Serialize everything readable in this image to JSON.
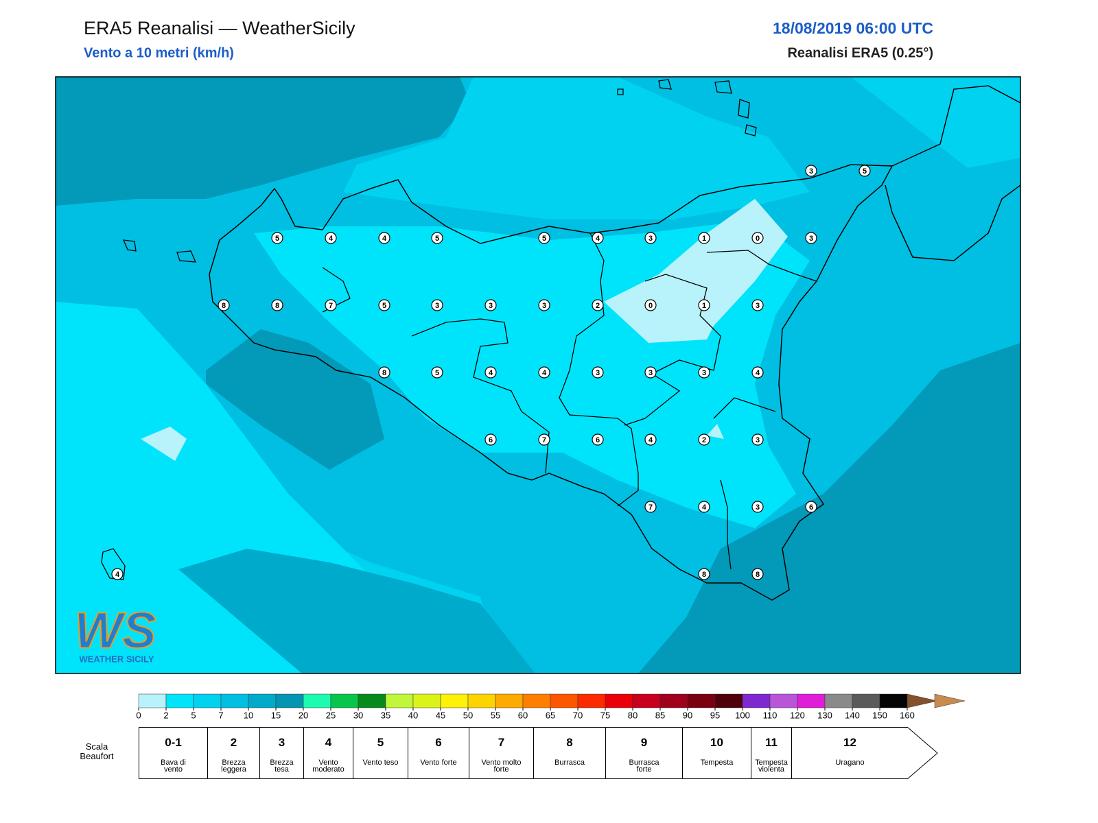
{
  "header": {
    "title": "ERA5 Reanalisi — WeatherSicily",
    "subtitle": "Vento a 10 metri (km/h)",
    "date": "18/08/2019 06:00 UTC",
    "source": "Reanalisi ERA5 (0.25°)"
  },
  "map": {
    "stations": [
      5,
      4,
      4,
      5,
      5,
      4,
      3,
      1,
      0,
      3,
      3,
      5,
      8,
      8,
      7,
      5,
      3,
      3,
      3,
      2,
      0,
      1,
      3,
      8,
      5,
      4,
      4,
      3,
      3,
      3,
      4,
      6,
      7,
      6,
      4,
      2,
      3,
      7,
      4,
      3,
      6,
      8,
      8,
      4
    ]
  },
  "logo": {
    "mark": "WS",
    "text": "WEATHER SICILY"
  },
  "colorbar": {
    "ticks": [
      0,
      2,
      5,
      7,
      10,
      15,
      20,
      25,
      30,
      35,
      40,
      45,
      50,
      55,
      60,
      65,
      70,
      75,
      80,
      85,
      90,
      95,
      100,
      110,
      120,
      130,
      140,
      150,
      160
    ],
    "colors": [
      "#b8f2fb",
      "#00e4fb",
      "#00d2f0",
      "#00bfe2",
      "#00aacb",
      "#0396b2",
      "#1dfbb0",
      "#08c64c",
      "#068a1c",
      "#c0f73a",
      "#dcf31a",
      "#fef10a",
      "#fed400",
      "#feaa00",
      "#fe7f00",
      "#fe5500",
      "#fe2a00",
      "#ea0008",
      "#c8001e",
      "#a0001c",
      "#7a0010",
      "#500008",
      "#7f28d2",
      "#b856d8",
      "#e01ed8",
      "#8a8a8a",
      "#5a5a5a",
      "#050505",
      "#86502a",
      "#c88a4e"
    ]
  },
  "beaufort": {
    "label": "Scala Beaufort",
    "levels": [
      {
        "force": "0-1",
        "name": "Bava di vento"
      },
      {
        "force": "2",
        "name": "Brezza leggera"
      },
      {
        "force": "3",
        "name": "Brezza tesa"
      },
      {
        "force": "4",
        "name": "Vento moderato"
      },
      {
        "force": "5",
        "name": "Vento teso"
      },
      {
        "force": "6",
        "name": "Vento forte"
      },
      {
        "force": "7",
        "name": "Vento molto forte"
      },
      {
        "force": "8",
        "name": "Burrasca"
      },
      {
        "force": "9",
        "name": "Burrasca forte"
      },
      {
        "force": "10",
        "name": "Tempesta"
      },
      {
        "force": "11",
        "name": "Tempesta violenta"
      },
      {
        "force": "12",
        "name": "Uragano"
      }
    ]
  }
}
